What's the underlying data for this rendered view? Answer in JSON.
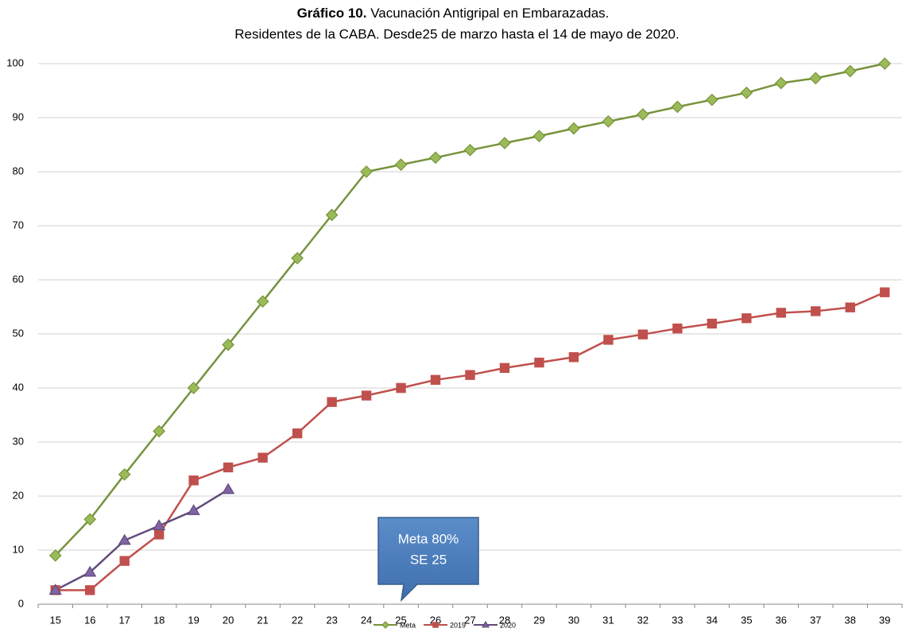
{
  "chart_data": {
    "type": "line",
    "title_prefix": "Gráfico 10.",
    "title": "Vacunación Antigripal en Embarazadas.",
    "subtitle": "Residentes de la CABA. Desde25 de marzo hasta el 14 de mayo de 2020.",
    "categories": [
      "15",
      "16",
      "17",
      "18",
      "19",
      "20",
      "21",
      "22",
      "23",
      "24",
      "25",
      "26",
      "27",
      "28",
      "29",
      "30",
      "31",
      "32",
      "33",
      "34",
      "35",
      "36",
      "37",
      "38",
      "39"
    ],
    "series": [
      {
        "name": "Meta",
        "color": "#77933c",
        "marker": "diamond",
        "values": [
          9,
          15.7,
          24,
          32,
          40,
          48,
          56,
          64,
          72,
          80,
          81.3,
          82.6,
          84,
          85.3,
          86.6,
          88,
          89.3,
          90.6,
          92,
          93.3,
          94.6,
          96.4,
          97.3,
          98.6,
          100
        ]
      },
      {
        "name": "2019",
        "color": "#c0504d",
        "marker": "square",
        "values": [
          2.6,
          2.6,
          8,
          12.9,
          22.9,
          25.3,
          27.1,
          31.6,
          37.4,
          38.6,
          40,
          41.5,
          42.4,
          43.7,
          44.7,
          45.7,
          48.9,
          49.9,
          51,
          51.9,
          52.9,
          53.9,
          54.2,
          54.9,
          57.7
        ]
      },
      {
        "name": "2020",
        "color": "#604a7b",
        "marker": "triangle",
        "values": [
          2.6,
          5.9,
          11.8,
          14.5,
          17.3,
          21.2,
          null,
          null,
          null,
          null,
          null,
          null,
          null,
          null,
          null,
          null,
          null,
          null,
          null,
          null,
          null,
          null,
          null,
          null,
          null
        ]
      }
    ],
    "ylim": [
      0,
      100
    ],
    "yticks": [
      0,
      10,
      20,
      30,
      40,
      50,
      60,
      70,
      80,
      90,
      100
    ],
    "grid": true,
    "legend": "bottom",
    "annotation": [
      "Meta 80%",
      "SE 25"
    ]
  }
}
